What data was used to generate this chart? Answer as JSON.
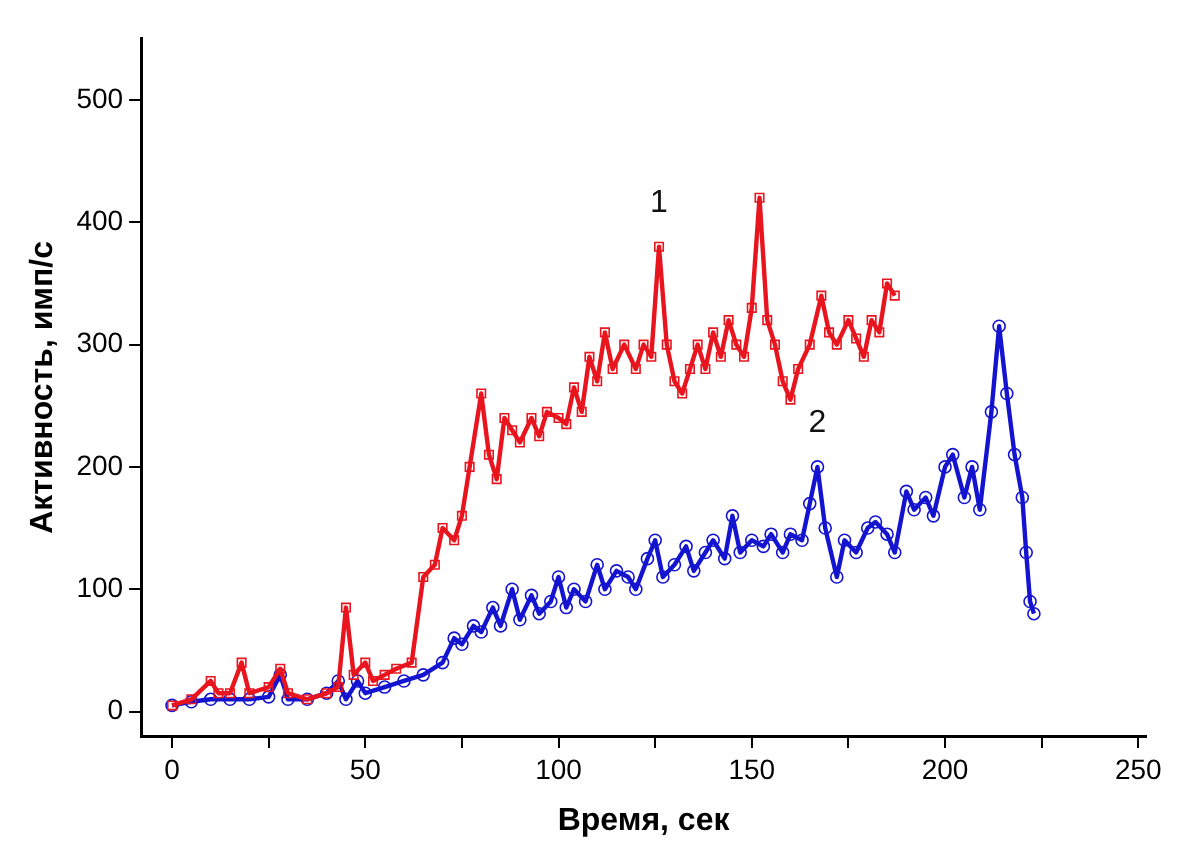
{
  "chart_data": {
    "type": "line",
    "xlabel": "Время, сек",
    "ylabel": "Активность, имп/с",
    "xlim": [
      -8,
      252
    ],
    "ylim": [
      -20,
      550
    ],
    "xticks": [
      0,
      {
        "value": 25,
        "label": null
      },
      50,
      {
        "value": 75,
        "label": null
      },
      100,
      {
        "value": 125,
        "label": null
      },
      150,
      {
        "value": 175,
        "label": null
      },
      200,
      {
        "value": 225,
        "label": null
      },
      250
    ],
    "yticks": [
      0,
      100,
      200,
      300,
      400,
      500
    ],
    "grid": false,
    "legend": false,
    "line_style": "solid",
    "series": [
      {
        "name": "1",
        "color": "#e8141e",
        "marker": "square",
        "x": [
          0,
          5,
          10,
          12,
          15,
          18,
          20,
          25,
          28,
          30,
          35,
          40,
          43,
          45,
          47,
          50,
          52,
          55,
          58,
          62,
          65,
          68,
          70,
          73,
          75,
          77,
          80,
          82,
          84,
          86,
          88,
          90,
          93,
          95,
          97,
          100,
          102,
          104,
          106,
          108,
          110,
          112,
          114,
          117,
          120,
          122,
          124,
          126,
          128,
          130,
          132,
          134,
          136,
          138,
          140,
          142,
          144,
          146,
          148,
          150,
          152,
          154,
          156,
          158,
          160,
          162,
          165,
          168,
          170,
          172,
          175,
          177,
          179,
          181,
          183,
          185,
          187
        ],
        "values": [
          5,
          10,
          25,
          15,
          15,
          40,
          15,
          20,
          35,
          15,
          10,
          15,
          20,
          85,
          30,
          40,
          25,
          30,
          35,
          40,
          110,
          120,
          150,
          140,
          160,
          200,
          260,
          210,
          190,
          240,
          230,
          220,
          240,
          225,
          245,
          240,
          235,
          265,
          245,
          290,
          270,
          310,
          280,
          300,
          280,
          300,
          290,
          380,
          300,
          270,
          260,
          280,
          300,
          280,
          310,
          290,
          320,
          300,
          290,
          330,
          420,
          320,
          300,
          270,
          255,
          280,
          300,
          340,
          310,
          300,
          320,
          305,
          290,
          320,
          310,
          350,
          340
        ]
      },
      {
        "name": "2",
        "color": "#1414d0",
        "marker": "circle",
        "x": [
          0,
          5,
          10,
          15,
          20,
          25,
          28,
          30,
          35,
          40,
          43,
          45,
          48,
          50,
          55,
          60,
          65,
          70,
          73,
          75,
          78,
          80,
          83,
          85,
          88,
          90,
          93,
          95,
          98,
          100,
          102,
          104,
          107,
          110,
          112,
          115,
          118,
          120,
          123,
          125,
          127,
          130,
          133,
          135,
          138,
          140,
          143,
          145,
          147,
          150,
          153,
          155,
          158,
          160,
          163,
          165,
          167,
          169,
          172,
          174,
          177,
          180,
          182,
          185,
          187,
          190,
          192,
          195,
          197,
          200,
          202,
          205,
          207,
          209,
          212,
          214,
          216,
          218,
          220,
          221,
          222,
          223
        ],
        "values": [
          5,
          8,
          10,
          10,
          10,
          12,
          30,
          10,
          10,
          15,
          25,
          10,
          25,
          15,
          20,
          25,
          30,
          40,
          60,
          55,
          70,
          65,
          85,
          70,
          100,
          75,
          95,
          80,
          90,
          110,
          85,
          100,
          90,
          120,
          100,
          115,
          110,
          100,
          125,
          140,
          110,
          120,
          135,
          115,
          130,
          140,
          125,
          160,
          130,
          140,
          135,
          145,
          130,
          145,
          140,
          170,
          200,
          150,
          110,
          140,
          130,
          150,
          155,
          145,
          130,
          180,
          165,
          175,
          160,
          200,
          210,
          175,
          200,
          165,
          245,
          315,
          260,
          210,
          175,
          130,
          90,
          80
        ]
      }
    ]
  }
}
